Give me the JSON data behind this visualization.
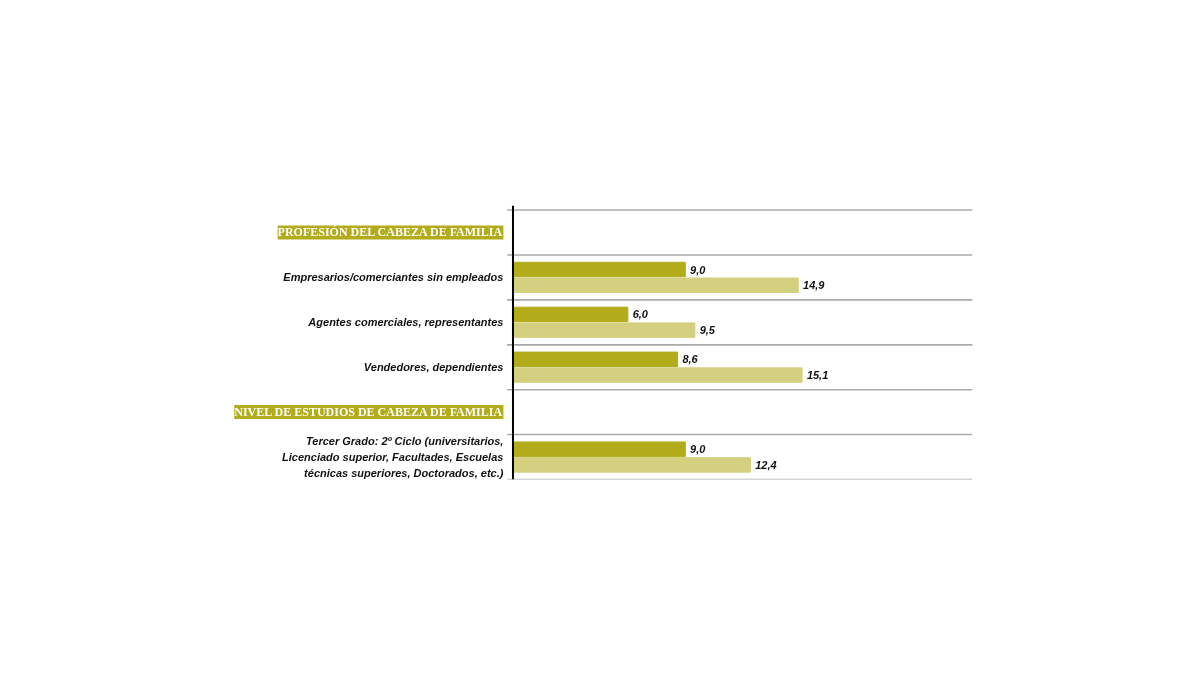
{
  "chart_data": {
    "type": "bar",
    "orientation": "horizontal",
    "categories": [
      "PROFESIÓN DEL CABEZA DE FAMILIA",
      "Empresarios/comerciantes sin empleados",
      "Agentes comerciales, representantes",
      "Vendedores, dependientes",
      "NIVEL DE ESTUDIOS DE CABEZA DE FAMILIA",
      "Tercer Grado: 2º Ciclo (universitarios,\nLicenciado superior, Facultades, Escuelas\ntécnicas superiores, Doctorados, etc.)"
    ],
    "series": [
      {
        "color": "#b2ab1a",
        "values": [
          null,
          9.0,
          6.0,
          8.6,
          null,
          9.0
        ],
        "value_labels": [
          null,
          "9,0",
          "6,0",
          "8,6",
          null,
          "9,0"
        ]
      },
      {
        "color": "#d4d07f",
        "values": [
          null,
          14.9,
          9.5,
          15.1,
          null,
          12.4
        ],
        "value_labels": [
          null,
          "14,9",
          "9,5",
          "15,1",
          null,
          "12,4"
        ]
      }
    ],
    "xlim": [
      0,
      24
    ],
    "tick_labels": false,
    "grid": false
  }
}
